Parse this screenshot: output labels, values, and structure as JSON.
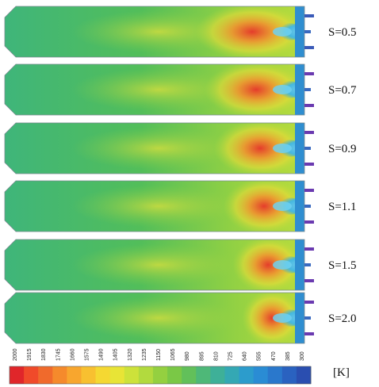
{
  "cases": [
    {
      "label": "S=0.5"
    },
    {
      "label": "S=0.7"
    },
    {
      "label": "S=0.9"
    },
    {
      "label": "S=1.1"
    },
    {
      "label": "S=1.5"
    },
    {
      "label": "S=2.0"
    }
  ],
  "colorbar": {
    "unit_label": "[K]",
    "tick_labels": [
      "2000",
      "1915",
      "1830",
      "1745",
      "1660",
      "1575",
      "1490",
      "1405",
      "1320",
      "1235",
      "1150",
      "1065",
      "980",
      "895",
      "810",
      "725",
      "640",
      "555",
      "470",
      "385",
      "300"
    ],
    "colors": [
      "#e0262a",
      "#f04a2a",
      "#f06a2c",
      "#f58a2c",
      "#f8a62e",
      "#f8c030",
      "#f5d832",
      "#e8e436",
      "#cde23a",
      "#b2da3e",
      "#94d040",
      "#7ac846",
      "#62c05a",
      "#4eb878",
      "#3eb098",
      "#34a8b4",
      "#2c9ccc",
      "#2a8cd4",
      "#2a78cc",
      "#2a62c0",
      "#2a4eb0"
    ]
  }
}
